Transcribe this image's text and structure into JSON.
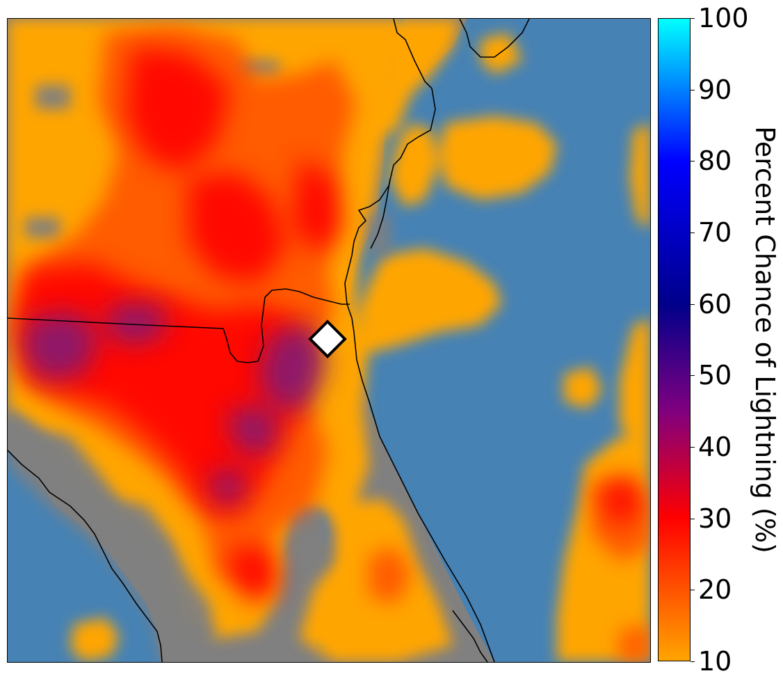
{
  "map": {
    "ocean_color": "#4682b4",
    "land_color": "#808080",
    "coastline_color": "#000000",
    "marker": {
      "shape": "diamond",
      "fill": "#ffffff",
      "stroke": "#000000",
      "icon": "location-marker-icon"
    }
  },
  "colorbar": {
    "label": "Percent Chance of Lightning (%)",
    "min": 10,
    "max": 100,
    "ticks": [
      "100",
      "90",
      "80",
      "70",
      "60",
      "50",
      "40",
      "30",
      "20",
      "10"
    ],
    "gradient": [
      {
        "value": 10,
        "color": "#ffa500"
      },
      {
        "value": 30,
        "color": "#ff0000"
      },
      {
        "value": 45,
        "color": "#800080"
      },
      {
        "value": 60,
        "color": "#00008b"
      },
      {
        "value": 80,
        "color": "#0000ff"
      },
      {
        "value": 100,
        "color": "#00ffff"
      }
    ]
  },
  "lightning_levels": {
    "low": "#ffa500",
    "medium": "#ff6000",
    "high": "#ff0000",
    "higher": "#c8102e",
    "very_high": "#6a1b8a"
  }
}
